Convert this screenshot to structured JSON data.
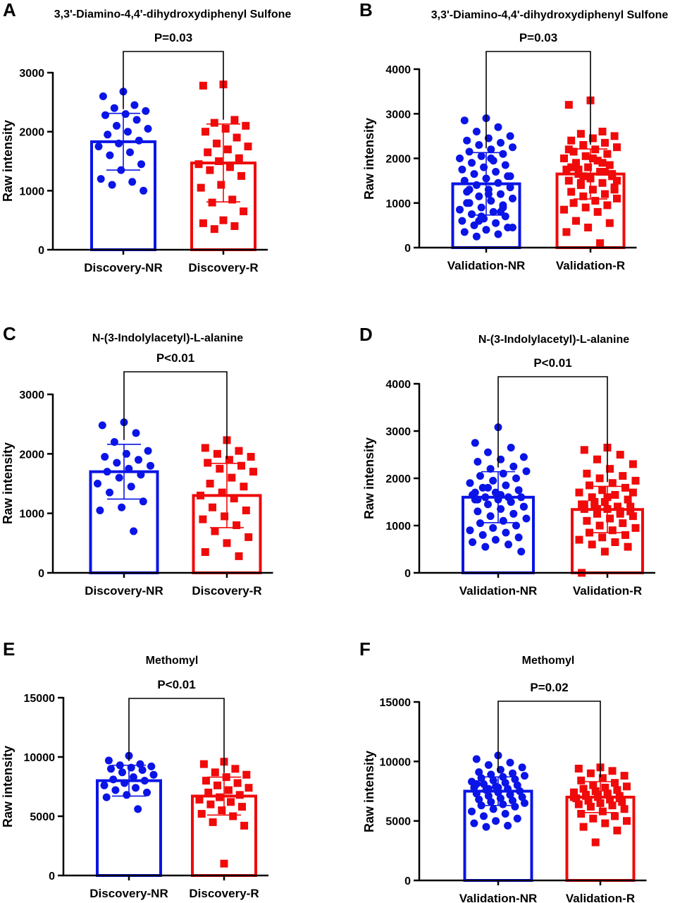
{
  "colors": {
    "nr": "#0a14e6",
    "r": "#f00a0a",
    "axis": "#000000"
  },
  "chart_data": [
    {
      "type": "bar",
      "panel": "A",
      "title": "3,3'-Diamino-4,4'-dihydroxydiphenyl Sulfone",
      "ylabel": "Raw intensity",
      "ylim": [
        0,
        3000
      ],
      "yticks": [
        0,
        1000,
        2000,
        3000
      ],
      "ytick_labels": [
        "0",
        "1000",
        "2000",
        "3000"
      ],
      "categories": [
        "Discovery-NR",
        "Discovery-R"
      ],
      "values": [
        1830,
        1470
      ],
      "sd": [
        480,
        660
      ],
      "pvalue": "P=0.03",
      "points": [
        [
          2680,
          2600,
          2450,
          2400,
          2350,
          2300,
          2280,
          2200,
          2100,
          2050,
          2000,
          1950,
          1850,
          1800,
          1750,
          1650,
          1600,
          1450,
          1350,
          1200,
          1150,
          1100,
          1000
        ],
        [
          2800,
          2780,
          2200,
          2150,
          2100,
          2050,
          2000,
          1900,
          1800,
          1750,
          1700,
          1650,
          1550,
          1500,
          1450,
          1400,
          1350,
          1250,
          1100,
          1050,
          850,
          800,
          650,
          500,
          450,
          400,
          350
        ]
      ]
    },
    {
      "type": "bar",
      "panel": "B",
      "title": "3,3'-Diamino-4,4'-dihydroxydiphenyl Sulfone",
      "ylabel": "Raw intensity",
      "ylim": [
        0,
        4000
      ],
      "yticks": [
        0,
        1000,
        2000,
        3000,
        4000
      ],
      "ytick_labels": [
        "0",
        "1000",
        "2000",
        "3000",
        "4000"
      ],
      "categories": [
        "Validation-NR",
        "Validation-R"
      ],
      "values": [
        1430,
        1650
      ],
      "sd": [
        700,
        560
      ],
      "pvalue": "P=0.03",
      "points": [
        [
          2900,
          2850,
          2700,
          2600,
          2500,
          2450,
          2400,
          2350,
          2300,
          2250,
          2200,
          2150,
          2100,
          2050,
          2000,
          1950,
          1900,
          1850,
          1800,
          1750,
          1700,
          1650,
          1600,
          1550,
          1500,
          1450,
          1400,
          1350,
          1300,
          1250,
          1200,
          1150,
          1100,
          1050,
          1000,
          950,
          900,
          850,
          800,
          750,
          700,
          650,
          600,
          550,
          500,
          450,
          400,
          350,
          300,
          250,
          1600,
          1200,
          1000,
          800,
          600,
          450,
          2000,
          1300,
          900,
          700
        ],
        [
          3300,
          3200,
          2600,
          2550,
          2500,
          2450,
          2400,
          2350,
          2300,
          2250,
          2200,
          2150,
          2100,
          2050,
          2000,
          1950,
          1900,
          1850,
          1800,
          1750,
          1700,
          1650,
          1600,
          1550,
          1500,
          1450,
          1400,
          1350,
          1300,
          1250,
          1200,
          1150,
          1100,
          1050,
          1000,
          950,
          900,
          850,
          800,
          600,
          550,
          450,
          350,
          100,
          1750,
          1650,
          1550,
          2200,
          1900,
          1450,
          1300,
          2000,
          1800,
          1700,
          1600,
          1500
        ]
      ]
    },
    {
      "type": "bar",
      "panel": "C",
      "title": "N-(3-Indolylacetyl)-L-alanine",
      "ylabel": "Raw intensity",
      "ylim": [
        0,
        3000
      ],
      "yticks": [
        0,
        1000,
        2000,
        3000
      ],
      "ytick_labels": [
        "0",
        "1000",
        "2000",
        "3000"
      ],
      "categories": [
        "Discovery-NR",
        "Discovery-R"
      ],
      "values": [
        1700,
        1300
      ],
      "sd": [
        460,
        540
      ],
      "pvalue": "P<0.01",
      "points": [
        [
          2530,
          2480,
          2350,
          2200,
          2050,
          2000,
          1950,
          1900,
          1850,
          1800,
          1750,
          1700,
          1650,
          1600,
          1500,
          1450,
          1350,
          1200,
          1100,
          1050,
          700
        ],
        [
          2230,
          2100,
          2050,
          2000,
          1950,
          1900,
          1850,
          1800,
          1750,
          1700,
          1600,
          1500,
          1450,
          1350,
          1300,
          1250,
          1100,
          1050,
          950,
          900,
          800,
          700,
          600,
          500,
          350,
          280
        ]
      ]
    },
    {
      "type": "bar",
      "panel": "D",
      "title": "N-(3-Indolylacetyl)-L-alanine",
      "ylabel": "Raw intensity",
      "ylim": [
        0,
        4000
      ],
      "yticks": [
        0,
        1000,
        2000,
        3000,
        4000
      ],
      "ytick_labels": [
        "0",
        "1000",
        "2000",
        "3000",
        "4000"
      ],
      "categories": [
        "Validation-NR",
        "Validation-R"
      ],
      "values": [
        1600,
        1340
      ],
      "sd": [
        540,
        490
      ],
      "pvalue": "P<0.01",
      "points": [
        [
          3080,
          2750,
          2650,
          2550,
          2450,
          2400,
          2350,
          2250,
          2200,
          2150,
          2100,
          2050,
          2000,
          1950,
          1900,
          1850,
          1800,
          1750,
          1700,
          1650,
          1600,
          1600,
          1600,
          1550,
          1550,
          1500,
          1450,
          1400,
          1350,
          1300,
          1250,
          1200,
          1150,
          1100,
          1050,
          1000,
          950,
          900,
          850,
          800,
          750,
          700,
          650,
          600,
          550,
          450,
          1600,
          1700,
          1500,
          1800,
          1400,
          1650,
          1550
        ],
        [
          2650,
          2600,
          2500,
          2400,
          2300,
          2200,
          2100,
          2050,
          2000,
          1950,
          1900,
          1850,
          1800,
          1750,
          1700,
          1650,
          1600,
          1550,
          1500,
          1450,
          1400,
          1400,
          1400,
          1350,
          1350,
          1300,
          1250,
          1200,
          1150,
          1100,
          1050,
          1000,
          950,
          900,
          850,
          800,
          750,
          700,
          650,
          600,
          550,
          450,
          0,
          1400,
          1500,
          1300,
          1600,
          1450,
          1250,
          1350,
          1700
        ]
      ]
    },
    {
      "type": "bar",
      "panel": "E",
      "title": "Methomyl",
      "ylabel": "Raw intensity",
      "ylim": [
        0,
        15000
      ],
      "yticks": [
        0,
        5000,
        10000,
        15000
      ],
      "ytick_labels": [
        "0",
        "5000",
        "10000",
        "15000"
      ],
      "categories": [
        "Discovery-NR",
        "Discovery-R"
      ],
      "values": [
        8000,
        6700
      ],
      "sd": [
        1300,
        1600
      ],
      "pvalue": "P<0.01",
      "points": [
        [
          10100,
          9700,
          9400,
          9300,
          9200,
          9100,
          9000,
          8900,
          8700,
          8500,
          8300,
          8100,
          8000,
          7800,
          7600,
          7400,
          7200,
          7000,
          6800,
          6600,
          5600
        ],
        [
          9600,
          9400,
          9000,
          8700,
          8500,
          8300,
          8000,
          7800,
          7600,
          7400,
          7200,
          7000,
          6800,
          6600,
          6400,
          6200,
          6000,
          5800,
          5500,
          5200,
          5000,
          4500,
          4200,
          1000
        ]
      ]
    },
    {
      "type": "bar",
      "panel": "F",
      "title": "Methomyl",
      "ylabel": "Raw intensity",
      "ylim": [
        0,
        15000
      ],
      "yticks": [
        0,
        5000,
        10000,
        15000
      ],
      "ytick_labels": [
        "0",
        "5000",
        "10000",
        "15000"
      ],
      "categories": [
        "Validation-NR",
        "Validation-R"
      ],
      "values": [
        7500,
        7000
      ],
      "sd": [
        1200,
        1300
      ],
      "pvalue": "P=0.02",
      "points": [
        [
          10500,
          10200,
          9900,
          9700,
          9500,
          9300,
          9100,
          9000,
          8900,
          8800,
          8700,
          8600,
          8500,
          8400,
          8300,
          8200,
          8100,
          8000,
          7900,
          7800,
          7700,
          7600,
          7500,
          7400,
          7300,
          7200,
          7100,
          7000,
          6900,
          6800,
          6700,
          6600,
          6500,
          6400,
          6300,
          6200,
          6000,
          5800,
          5600,
          5400,
          5200,
          5000,
          4800,
          4600,
          4500,
          7500,
          7800,
          8100,
          7200,
          7700
        ],
        [
          9500,
          9400,
          9200,
          9000,
          8800,
          8600,
          8400,
          8200,
          8000,
          7900,
          7800,
          7700,
          7600,
          7500,
          7400,
          7300,
          7200,
          7100,
          7000,
          6900,
          6800,
          6700,
          6600,
          6500,
          6400,
          6300,
          6200,
          6000,
          5800,
          5600,
          5400,
          5200,
          5000,
          4800,
          4500,
          4200,
          3200,
          7000,
          7300,
          7100,
          6900,
          7200
        ]
      ]
    }
  ]
}
